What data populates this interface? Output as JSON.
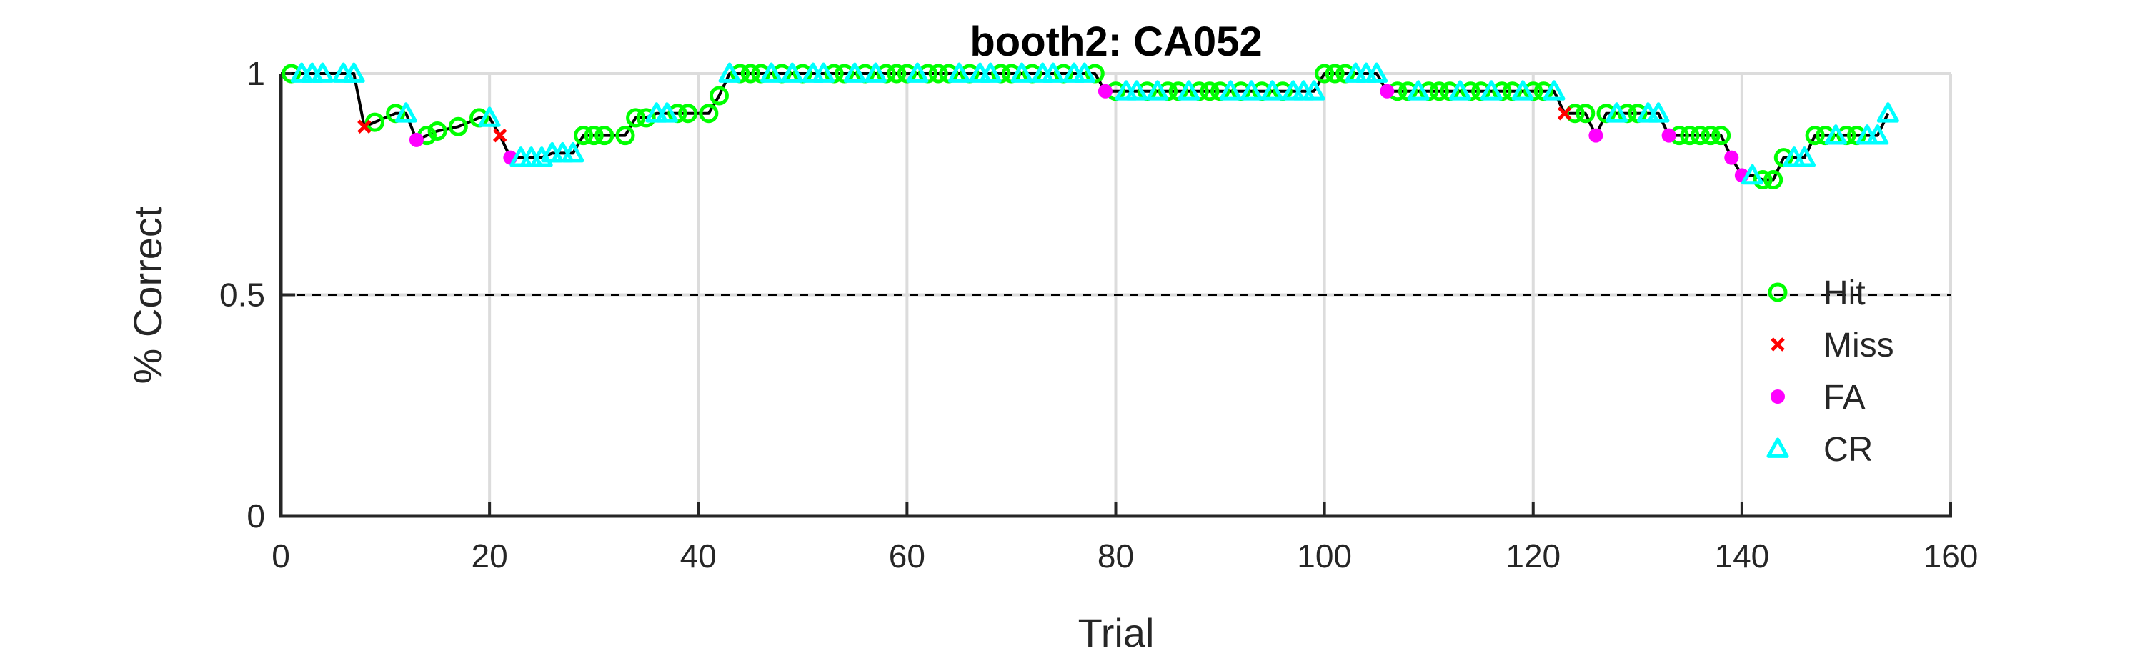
{
  "chart_data": {
    "type": "line",
    "title": "booth2: CA052",
    "xlabel": "Trial",
    "ylabel": "% Correct",
    "xlim": [
      0,
      160
    ],
    "ylim": [
      0,
      1
    ],
    "xticks": [
      0,
      20,
      40,
      60,
      80,
      100,
      120,
      140,
      160
    ],
    "yticks": [
      0,
      0.5,
      1
    ],
    "x_tick_labels": [
      "0",
      "20",
      "40",
      "60",
      "80",
      "100",
      "120",
      "140",
      "160"
    ],
    "y_tick_labels": [
      "0",
      "0.5",
      "1"
    ],
    "grid": true,
    "reference_line": {
      "y": 0.5,
      "style": "dashed"
    },
    "legend_position": "right",
    "colors": {
      "line": "#000000",
      "Hit": "#00ff00",
      "Miss": "#ff0000",
      "FA": "#ff00ff",
      "CR": "#00ffff",
      "grid": "#dcdcdc",
      "axis": "#262626"
    },
    "series": [
      {
        "name": "Hit",
        "marker": "circle",
        "x": [
          1,
          9,
          11,
          14,
          15,
          17,
          19,
          29,
          30,
          31,
          33,
          34,
          35,
          38,
          39,
          41,
          42,
          44,
          45,
          46,
          48,
          50,
          53,
          54,
          56,
          58,
          59,
          60,
          62,
          63,
          64,
          66,
          69,
          70,
          72,
          75,
          78,
          80,
          83,
          85,
          86,
          88,
          89,
          90,
          92,
          94,
          96,
          100,
          101,
          102,
          107,
          108,
          110,
          111,
          112,
          114,
          115,
          117,
          118,
          120,
          121,
          124,
          125,
          127,
          129,
          130,
          134,
          135,
          136,
          137,
          138,
          142,
          143,
          144,
          147,
          148,
          150,
          151
        ],
        "y": [
          1,
          0.89,
          0.91,
          0.86,
          0.87,
          0.88,
          0.9,
          0.86,
          0.86,
          0.86,
          0.86,
          0.9,
          0.9,
          0.91,
          0.91,
          0.91,
          0.95,
          1,
          1,
          1,
          1,
          1,
          1,
          1,
          1,
          1,
          1,
          1,
          1,
          1,
          1,
          1,
          1,
          1,
          1,
          1,
          1,
          0.96,
          0.96,
          0.96,
          0.96,
          0.96,
          0.96,
          0.96,
          0.96,
          0.96,
          0.96,
          1,
          1,
          1,
          0.96,
          0.96,
          0.96,
          0.96,
          0.96,
          0.96,
          0.96,
          0.96,
          0.96,
          0.96,
          0.96,
          0.91,
          0.91,
          0.91,
          0.91,
          0.91,
          0.86,
          0.86,
          0.86,
          0.86,
          0.86,
          0.76,
          0.76,
          0.81,
          0.86,
          0.86,
          0.86,
          0.86
        ]
      },
      {
        "name": "Miss",
        "marker": "x",
        "x": [
          8,
          21,
          123
        ],
        "y": [
          0.88,
          0.86,
          0.91
        ]
      },
      {
        "name": "FA",
        "marker": "dot",
        "x": [
          13,
          22,
          79,
          106,
          126,
          133,
          139,
          140
        ],
        "y": [
          0.85,
          0.81,
          0.96,
          0.96,
          0.86,
          0.86,
          0.81,
          0.77
        ]
      },
      {
        "name": "CR",
        "marker": "triangle",
        "x": [
          2,
          3,
          4,
          6,
          7,
          12,
          20,
          23,
          24,
          25,
          26,
          27,
          28,
          36,
          37,
          43,
          47,
          49,
          51,
          52,
          55,
          57,
          61,
          65,
          67,
          68,
          71,
          73,
          74,
          76,
          77,
          81,
          82,
          84,
          87,
          91,
          93,
          95,
          97,
          98,
          99,
          103,
          104,
          105,
          109,
          113,
          116,
          119,
          122,
          128,
          131,
          132,
          141,
          145,
          146,
          149,
          152,
          153,
          154
        ],
        "y": [
          1,
          1,
          1,
          1,
          1,
          0.91,
          0.9,
          0.81,
          0.81,
          0.81,
          0.82,
          0.82,
          0.82,
          0.91,
          0.91,
          1,
          1,
          1,
          1,
          1,
          1,
          1,
          1,
          1,
          1,
          1,
          1,
          1,
          1,
          1,
          1,
          0.96,
          0.96,
          0.96,
          0.96,
          0.96,
          0.96,
          0.96,
          0.96,
          0.96,
          0.96,
          1,
          1,
          1,
          0.96,
          0.96,
          0.96,
          0.96,
          0.96,
          0.91,
          0.91,
          0.91,
          0.77,
          0.81,
          0.81,
          0.86,
          0.86,
          0.86,
          0.91
        ]
      }
    ]
  }
}
